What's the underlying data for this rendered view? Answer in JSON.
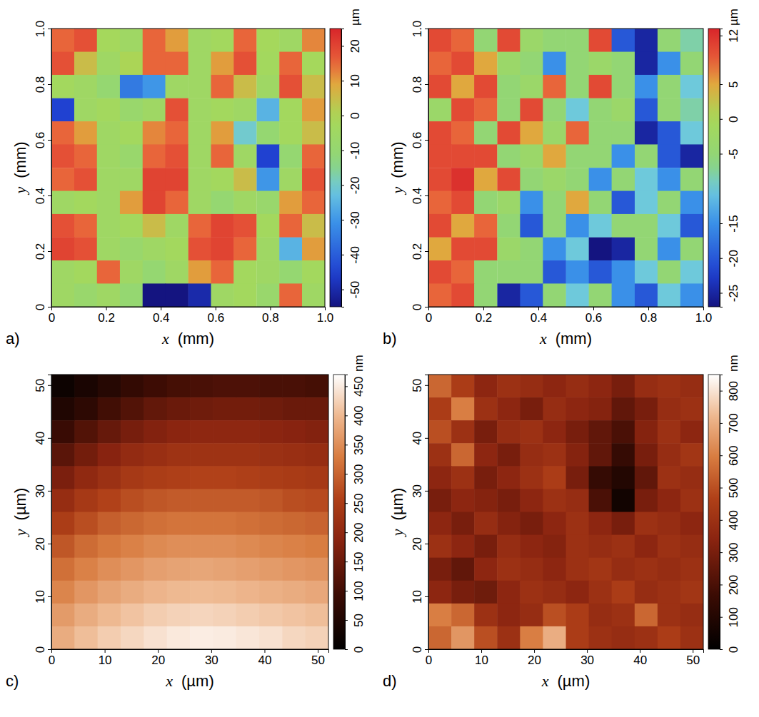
{
  "chart_data": [
    {
      "type": "heatmap",
      "panel": "a)",
      "color": "jet",
      "x_label": "x",
      "x_unit": "(mm)",
      "y_label": "y",
      "y_unit": "(mm)",
      "xlim": [
        0,
        1
      ],
      "ylim": [
        0,
        1
      ],
      "xticks": [
        0,
        0.2,
        0.4,
        0.6,
        0.8,
        {
          "value": 1,
          "label": "1.0"
        }
      ],
      "yticks": [
        0,
        0.2,
        0.4,
        0.6,
        0.8,
        {
          "value": 1,
          "label": "1.0"
        }
      ],
      "x": [
        0.042,
        0.125,
        0.208,
        0.292,
        0.375,
        0.458,
        0.542,
        0.625,
        0.708,
        0.792,
        0.875,
        0.958
      ],
      "y": [
        0.958,
        0.875,
        0.792,
        0.708,
        0.625,
        0.542,
        0.458,
        0.375,
        0.292,
        0.208,
        0.125,
        0.042
      ],
      "z": [
        [
          15,
          18,
          -2,
          -5,
          15,
          10,
          -5,
          -3,
          15,
          -2,
          -5,
          12
        ],
        [
          18,
          5,
          -5,
          0,
          15,
          15,
          -5,
          10,
          18,
          -3,
          15,
          -2
        ],
        [
          -3,
          -5,
          -10,
          -35,
          -30,
          -5,
          -5,
          15,
          5,
          -5,
          18,
          5
        ],
        [
          -45,
          -5,
          -3,
          -8,
          -5,
          18,
          -5,
          -3,
          -5,
          -25,
          -3,
          10
        ],
        [
          15,
          10,
          -5,
          -3,
          12,
          15,
          -5,
          10,
          -20,
          -10,
          -3,
          5
        ],
        [
          18,
          15,
          -5,
          -8,
          15,
          18,
          -5,
          15,
          -5,
          -45,
          -10,
          15
        ],
        [
          15,
          18,
          -5,
          -5,
          20,
          20,
          -5,
          -3,
          5,
          -30,
          -5,
          18
        ],
        [
          -5,
          -3,
          -5,
          10,
          20,
          15,
          -5,
          -10,
          -5,
          -8,
          10,
          15
        ],
        [
          18,
          15,
          -5,
          -3,
          5,
          -5,
          15,
          20,
          18,
          -3,
          15,
          5
        ],
        [
          20,
          18,
          -5,
          -8,
          -5,
          -3,
          18,
          20,
          15,
          -5,
          -25,
          10
        ],
        [
          -5,
          -3,
          15,
          -5,
          -10,
          -5,
          10,
          15,
          -3,
          -5,
          -10,
          -3
        ],
        [
          -5,
          -8,
          -5,
          -10,
          -55,
          -55,
          -50,
          -5,
          -3,
          -8,
          15,
          -5
        ]
      ],
      "colorbar": {
        "range": [
          -55,
          25
        ],
        "ticks": [
          -50,
          -40,
          -30,
          -20,
          -10,
          0,
          10,
          20
        ],
        "unit": "µm"
      }
    },
    {
      "type": "heatmap",
      "panel": "b)",
      "color": "jet",
      "x_label": "x",
      "x_unit": "(mm)",
      "y_label": "y",
      "y_unit": "(mm)",
      "xlim": [
        0,
        1
      ],
      "ylim": [
        0,
        1
      ],
      "xticks": [
        0,
        0.2,
        0.4,
        0.6,
        0.8,
        {
          "value": 1,
          "label": "1.0"
        }
      ],
      "yticks": [
        0,
        0.2,
        0.4,
        0.6,
        0.8,
        {
          "value": 1,
          "label": "1.0"
        }
      ],
      "x": [
        0.042,
        0.125,
        0.208,
        0.292,
        0.375,
        0.458,
        0.542,
        0.625,
        0.708,
        0.792,
        0.875,
        0.958
      ],
      "y": [
        0.958,
        0.875,
        0.792,
        0.708,
        0.625,
        0.542,
        0.458,
        0.375,
        0.292,
        0.208,
        0.125,
        0.042
      ],
      "z": [
        [
          10,
          8,
          -5,
          10,
          -3,
          -5,
          -5,
          10,
          -20,
          -25,
          -5,
          -8
        ],
        [
          8,
          10,
          5,
          -3,
          -5,
          -15,
          -5,
          -3,
          -5,
          -25,
          -15,
          -5
        ],
        [
          10,
          5,
          10,
          -5,
          -3,
          8,
          -5,
          10,
          -5,
          -15,
          -5,
          -10
        ],
        [
          -3,
          10,
          8,
          -5,
          10,
          -5,
          -10,
          -5,
          -3,
          -20,
          -5,
          -8
        ],
        [
          10,
          8,
          -5,
          10,
          5,
          -3,
          8,
          -5,
          -5,
          -25,
          -20,
          -10
        ],
        [
          10,
          10,
          10,
          -5,
          -3,
          5,
          -5,
          -5,
          -15,
          -5,
          -20,
          -25
        ],
        [
          10,
          12,
          5,
          10,
          -5,
          -3,
          -5,
          -15,
          -5,
          -10,
          -15,
          -5
        ],
        [
          8,
          10,
          -5,
          -3,
          -15,
          -5,
          5,
          -5,
          -20,
          -10,
          -5,
          -15
        ],
        [
          10,
          5,
          8,
          -5,
          -20,
          -5,
          -15,
          -10,
          -5,
          -5,
          -10,
          -20
        ],
        [
          5,
          10,
          10,
          -3,
          -5,
          -15,
          -10,
          -27,
          -25,
          -5,
          -15,
          -5
        ],
        [
          10,
          8,
          -5,
          -5,
          -5,
          -20,
          -15,
          -20,
          -15,
          -10,
          -5,
          -10
        ],
        [
          8,
          10,
          -5,
          -25,
          -20,
          -5,
          -10,
          -5,
          -15,
          -20,
          -10,
          -15
        ]
      ],
      "colorbar": {
        "range": [
          -27,
          13
        ],
        "ticks": [
          -25,
          -20,
          -15,
          -5,
          0,
          5,
          12
        ],
        "unit": "µm"
      }
    },
    {
      "type": "heatmap",
      "panel": "c)",
      "color": "gold",
      "x_label": "x",
      "x_unit": "(µm)",
      "y_label": "y",
      "y_unit": "(µm)",
      "xlim": [
        0,
        52
      ],
      "ylim": [
        0,
        52
      ],
      "xticks": [
        0,
        10,
        20,
        30,
        40,
        50
      ],
      "yticks": [
        0,
        10,
        20,
        30,
        40,
        50
      ],
      "x": [
        2.17,
        6.5,
        10.83,
        15.17,
        19.5,
        23.83,
        28.17,
        32.5,
        36.83,
        41.17,
        45.5,
        49.83
      ],
      "y": [
        49.83,
        45.5,
        41.17,
        36.83,
        32.5,
        28.17,
        23.83,
        19.5,
        15.17,
        10.83,
        6.5,
        2.17
      ],
      "z": [
        [
          20,
          40,
          60,
          80,
          95,
          105,
          110,
          115,
          115,
          110,
          110,
          105
        ],
        [
          50,
          70,
          100,
          120,
          140,
          150,
          155,
          160,
          160,
          155,
          150,
          150
        ],
        [
          90,
          120,
          145,
          165,
          180,
          190,
          195,
          195,
          195,
          190,
          185,
          180
        ],
        [
          130,
          160,
          185,
          205,
          215,
          225,
          225,
          225,
          225,
          220,
          215,
          210
        ],
        [
          170,
          200,
          220,
          240,
          250,
          255,
          260,
          260,
          255,
          250,
          245,
          240
        ],
        [
          210,
          240,
          260,
          275,
          285,
          290,
          290,
          290,
          290,
          285,
          275,
          270
        ],
        [
          250,
          275,
          295,
          305,
          315,
          320,
          320,
          320,
          315,
          310,
          305,
          300
        ],
        [
          285,
          310,
          325,
          335,
          345,
          350,
          350,
          350,
          345,
          340,
          335,
          330
        ],
        [
          315,
          335,
          350,
          360,
          370,
          375,
          378,
          375,
          370,
          365,
          360,
          355
        ],
        [
          340,
          360,
          375,
          385,
          395,
          400,
          402,
          400,
          395,
          390,
          385,
          380
        ],
        [
          365,
          385,
          400,
          410,
          420,
          425,
          428,
          425,
          420,
          415,
          410,
          405
        ],
        [
          385,
          405,
          420,
          430,
          440,
          448,
          452,
          450,
          445,
          440,
          430,
          425
        ]
      ],
      "colorbar": {
        "range": [
          0,
          470
        ],
        "ticks": [
          0,
          50,
          100,
          150,
          200,
          250,
          300,
          350,
          400,
          450
        ],
        "unit": "nm"
      }
    },
    {
      "type": "heatmap",
      "panel": "d)",
      "color": "gold",
      "x_label": "x",
      "x_unit": "(µm)",
      "y_label": "y",
      "y_unit": "(µm)",
      "xlim": [
        0,
        52
      ],
      "ylim": [
        0,
        52
      ],
      "xticks": [
        0,
        10,
        20,
        30,
        40,
        50
      ],
      "yticks": [
        0,
        10,
        20,
        30,
        40,
        50
      ],
      "x": [
        2.17,
        6.5,
        10.83,
        15.17,
        19.5,
        23.83,
        28.17,
        32.5,
        36.83,
        41.17,
        45.5,
        49.83
      ],
      "y": [
        49.83,
        45.5,
        41.17,
        36.83,
        32.5,
        28.17,
        23.83,
        19.5,
        15.17,
        10.83,
        6.5,
        2.17
      ],
      "z": [
        [
          550,
          450,
          350,
          400,
          380,
          350,
          380,
          350,
          300,
          380,
          400,
          380
        ],
        [
          450,
          600,
          400,
          350,
          300,
          380,
          350,
          330,
          250,
          300,
          380,
          400
        ],
        [
          500,
          400,
          300,
          380,
          400,
          350,
          300,
          250,
          200,
          330,
          400,
          350
        ],
        [
          400,
          550,
          350,
          300,
          380,
          400,
          330,
          250,
          150,
          300,
          380,
          420
        ],
        [
          350,
          400,
          300,
          350,
          400,
          450,
          300,
          150,
          100,
          250,
          400,
          380
        ],
        [
          300,
          350,
          330,
          300,
          350,
          400,
          380,
          200,
          50,
          300,
          350,
          400
        ],
        [
          350,
          300,
          380,
          330,
          300,
          350,
          400,
          350,
          300,
          400,
          380,
          350
        ],
        [
          400,
          350,
          300,
          380,
          350,
          330,
          400,
          380,
          400,
          350,
          400,
          380
        ],
        [
          300,
          250,
          350,
          400,
          380,
          350,
          400,
          420,
          380,
          400,
          380,
          400
        ],
        [
          350,
          300,
          280,
          350,
          400,
          380,
          350,
          400,
          450,
          380,
          400,
          420
        ],
        [
          600,
          550,
          400,
          350,
          380,
          500,
          450,
          380,
          400,
          550,
          400,
          380
        ],
        [
          550,
          650,
          500,
          400,
          600,
          700,
          450,
          400,
          380,
          400,
          450,
          400
        ]
      ],
      "colorbar": {
        "range": [
          0,
          850
        ],
        "ticks": [
          0,
          100,
          200,
          300,
          400,
          500,
          600,
          700,
          800
        ],
        "unit": "nm"
      }
    }
  ]
}
